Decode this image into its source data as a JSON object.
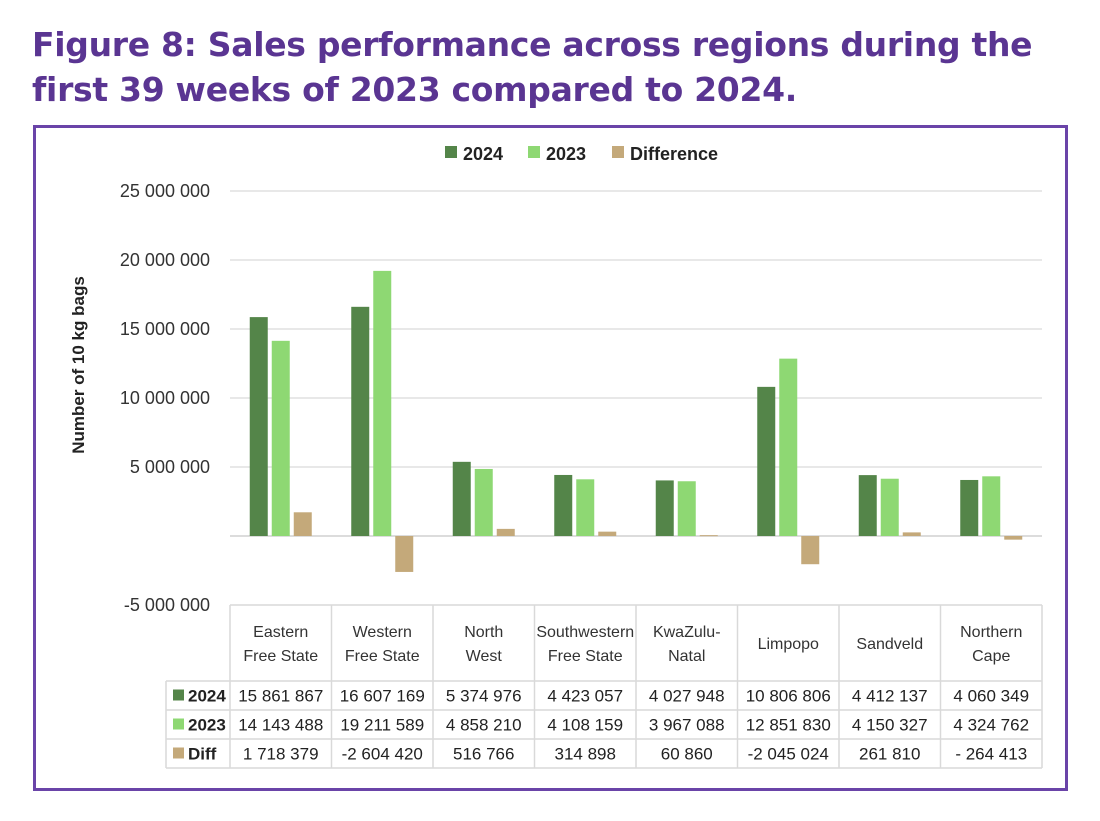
{
  "figure": {
    "title_line1": "Figure 8: Sales performance across regions during the",
    "title_line2": "first 39 weeks of 2023 compared to 2024."
  },
  "colors": {
    "title": "#5a3592",
    "frame": "#6a44a8",
    "series_2024": "#548549",
    "series_2023": "#8ed873",
    "series_diff": "#c4a97a",
    "gridline": "#e0e0e0",
    "table_border": "#d9d9d9"
  },
  "chart_data": {
    "type": "bar",
    "title": "Figure 8: Sales performance across regions during the first 39 weeks of 2023 compared to 2024.",
    "xlabel": "",
    "ylabel": "Number of 10 kg bags",
    "ylim": [
      -5000000,
      25000000
    ],
    "yticks": [
      -5000000,
      0,
      5000000,
      10000000,
      15000000,
      20000000,
      25000000
    ],
    "ytick_labels": [
      "-5 000 000",
      "",
      "5 000 000",
      "10 000 000",
      "15 000 000",
      "20 000 000",
      "25 000 000"
    ],
    "grid": true,
    "legend_position": "top-center",
    "categories": [
      [
        "Eastern",
        "Free State"
      ],
      [
        "Western",
        "Free State"
      ],
      [
        "North",
        "West"
      ],
      [
        "Southwestern",
        "Free State"
      ],
      [
        "KwaZulu-",
        "Natal"
      ],
      [
        "Limpopo"
      ],
      [
        "Sandveld"
      ],
      [
        "Northern",
        "Cape"
      ]
    ],
    "series": [
      {
        "name": "2024",
        "legend_label": "2024",
        "table_label": "2024",
        "color_key": "series_2024",
        "values": [
          15861867,
          16607169,
          5374976,
          4423057,
          4027948,
          10806806,
          4412137,
          4060349
        ],
        "display": [
          "15 861 867",
          "16 607 169",
          "5 374 976",
          "4 423 057",
          "4 027 948",
          "10 806 806",
          "4 412 137",
          "4 060 349"
        ]
      },
      {
        "name": "2023",
        "legend_label": "2023",
        "table_label": "2023",
        "color_key": "series_2023",
        "values": [
          14143488,
          19211589,
          4858210,
          4108159,
          3967088,
          12851830,
          4150327,
          4324762
        ],
        "display": [
          "14 143 488",
          "19 211 589",
          "4 858 210",
          "4 108 159",
          "3 967 088",
          "12 851 830",
          "4 150 327",
          "4 324 762"
        ]
      },
      {
        "name": "Difference",
        "legend_label": "Difference",
        "table_label": "Diff",
        "color_key": "series_diff",
        "values": [
          1718379,
          -2604420,
          516766,
          314898,
          60860,
          -2045024,
          261810,
          -264413
        ],
        "display": [
          "1 718 379",
          "-2 604 420",
          "516 766",
          "314 898",
          "60 860",
          "-2 045 024",
          "261 810",
          "- 264 413"
        ]
      }
    ]
  }
}
